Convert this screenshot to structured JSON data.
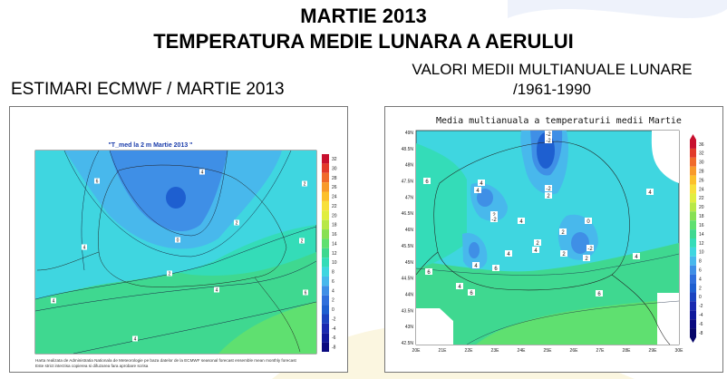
{
  "header": {
    "title_line1": "MARTIE 2013",
    "title_line2": "TEMPERATURA MEDIE LUNARA A AERULUI"
  },
  "left_panel": {
    "heading": "ESTIMARI ECMWF / MARTIE 2013",
    "map_title": "\"T_med la 2 m Martie 2013 \"",
    "colorbar_ticks": [
      "32",
      "30",
      "28",
      "26",
      "24",
      "22",
      "20",
      "18",
      "16",
      "14",
      "12",
      "10",
      "8",
      "6",
      "4",
      "2",
      "0",
      "-2",
      "-4",
      "-6",
      "-8"
    ],
    "contour_labels": [
      "6",
      "4",
      "2",
      "0",
      "2",
      "4",
      "2",
      "2",
      "4",
      "4",
      "6",
      "4",
      "6",
      "6",
      "4",
      "6",
      "8"
    ],
    "footnote_line1": "Harta realizata de Administratia Nationala de Meteorologie pe baza datelor de la ECMWF seasonal forecast ensemble mean monthly forecast",
    "footnote_line2": "Este strict interzisa copierea si difuzarea fara aprobare scrisa"
  },
  "right_panel": {
    "heading_line1": "VALORI MEDII MULTIANUALE LUNARE",
    "heading_line2": "/1961-1990",
    "map_title": "Media multianuala a temperaturii medii Martie",
    "lat_ticks": [
      "49N",
      "48.5N",
      "48N",
      "47.5N",
      "47N",
      "46.5N",
      "46N",
      "45.5N",
      "45N",
      "44.5N",
      "44N",
      "43.5N",
      "43N",
      "42.5N"
    ],
    "lon_ticks": [
      "20E",
      "21E",
      "22E",
      "23E",
      "24E",
      "25E",
      "26E",
      "27E",
      "28E",
      "29E",
      "30E"
    ],
    "colorbar_ticks": [
      "36",
      "32",
      "30",
      "28",
      "26",
      "24",
      "22",
      "20",
      "18",
      "16",
      "14",
      "12",
      "10",
      "8",
      "6",
      "4",
      "2",
      "0",
      "-2",
      "-4",
      "-6",
      "-8"
    ],
    "contour_labels": [
      "-2",
      "-2",
      "6",
      "4",
      "4",
      "-2",
      "2",
      "4",
      "2",
      "0",
      "-2",
      "2",
      "2",
      "-2",
      "4",
      "2",
      "4",
      "2",
      "6",
      "4",
      "6",
      "4",
      "6",
      "4",
      "6",
      "4"
    ]
  },
  "colors": {
    "deep_blue": "#1e5fd0",
    "mid_blue": "#3f8fe6",
    "light_blue": "#48b8ec",
    "cyan": "#3fd6e0",
    "aqua_green": "#34dcb8",
    "green": "#3fd890",
    "light_green": "#5fe070"
  }
}
